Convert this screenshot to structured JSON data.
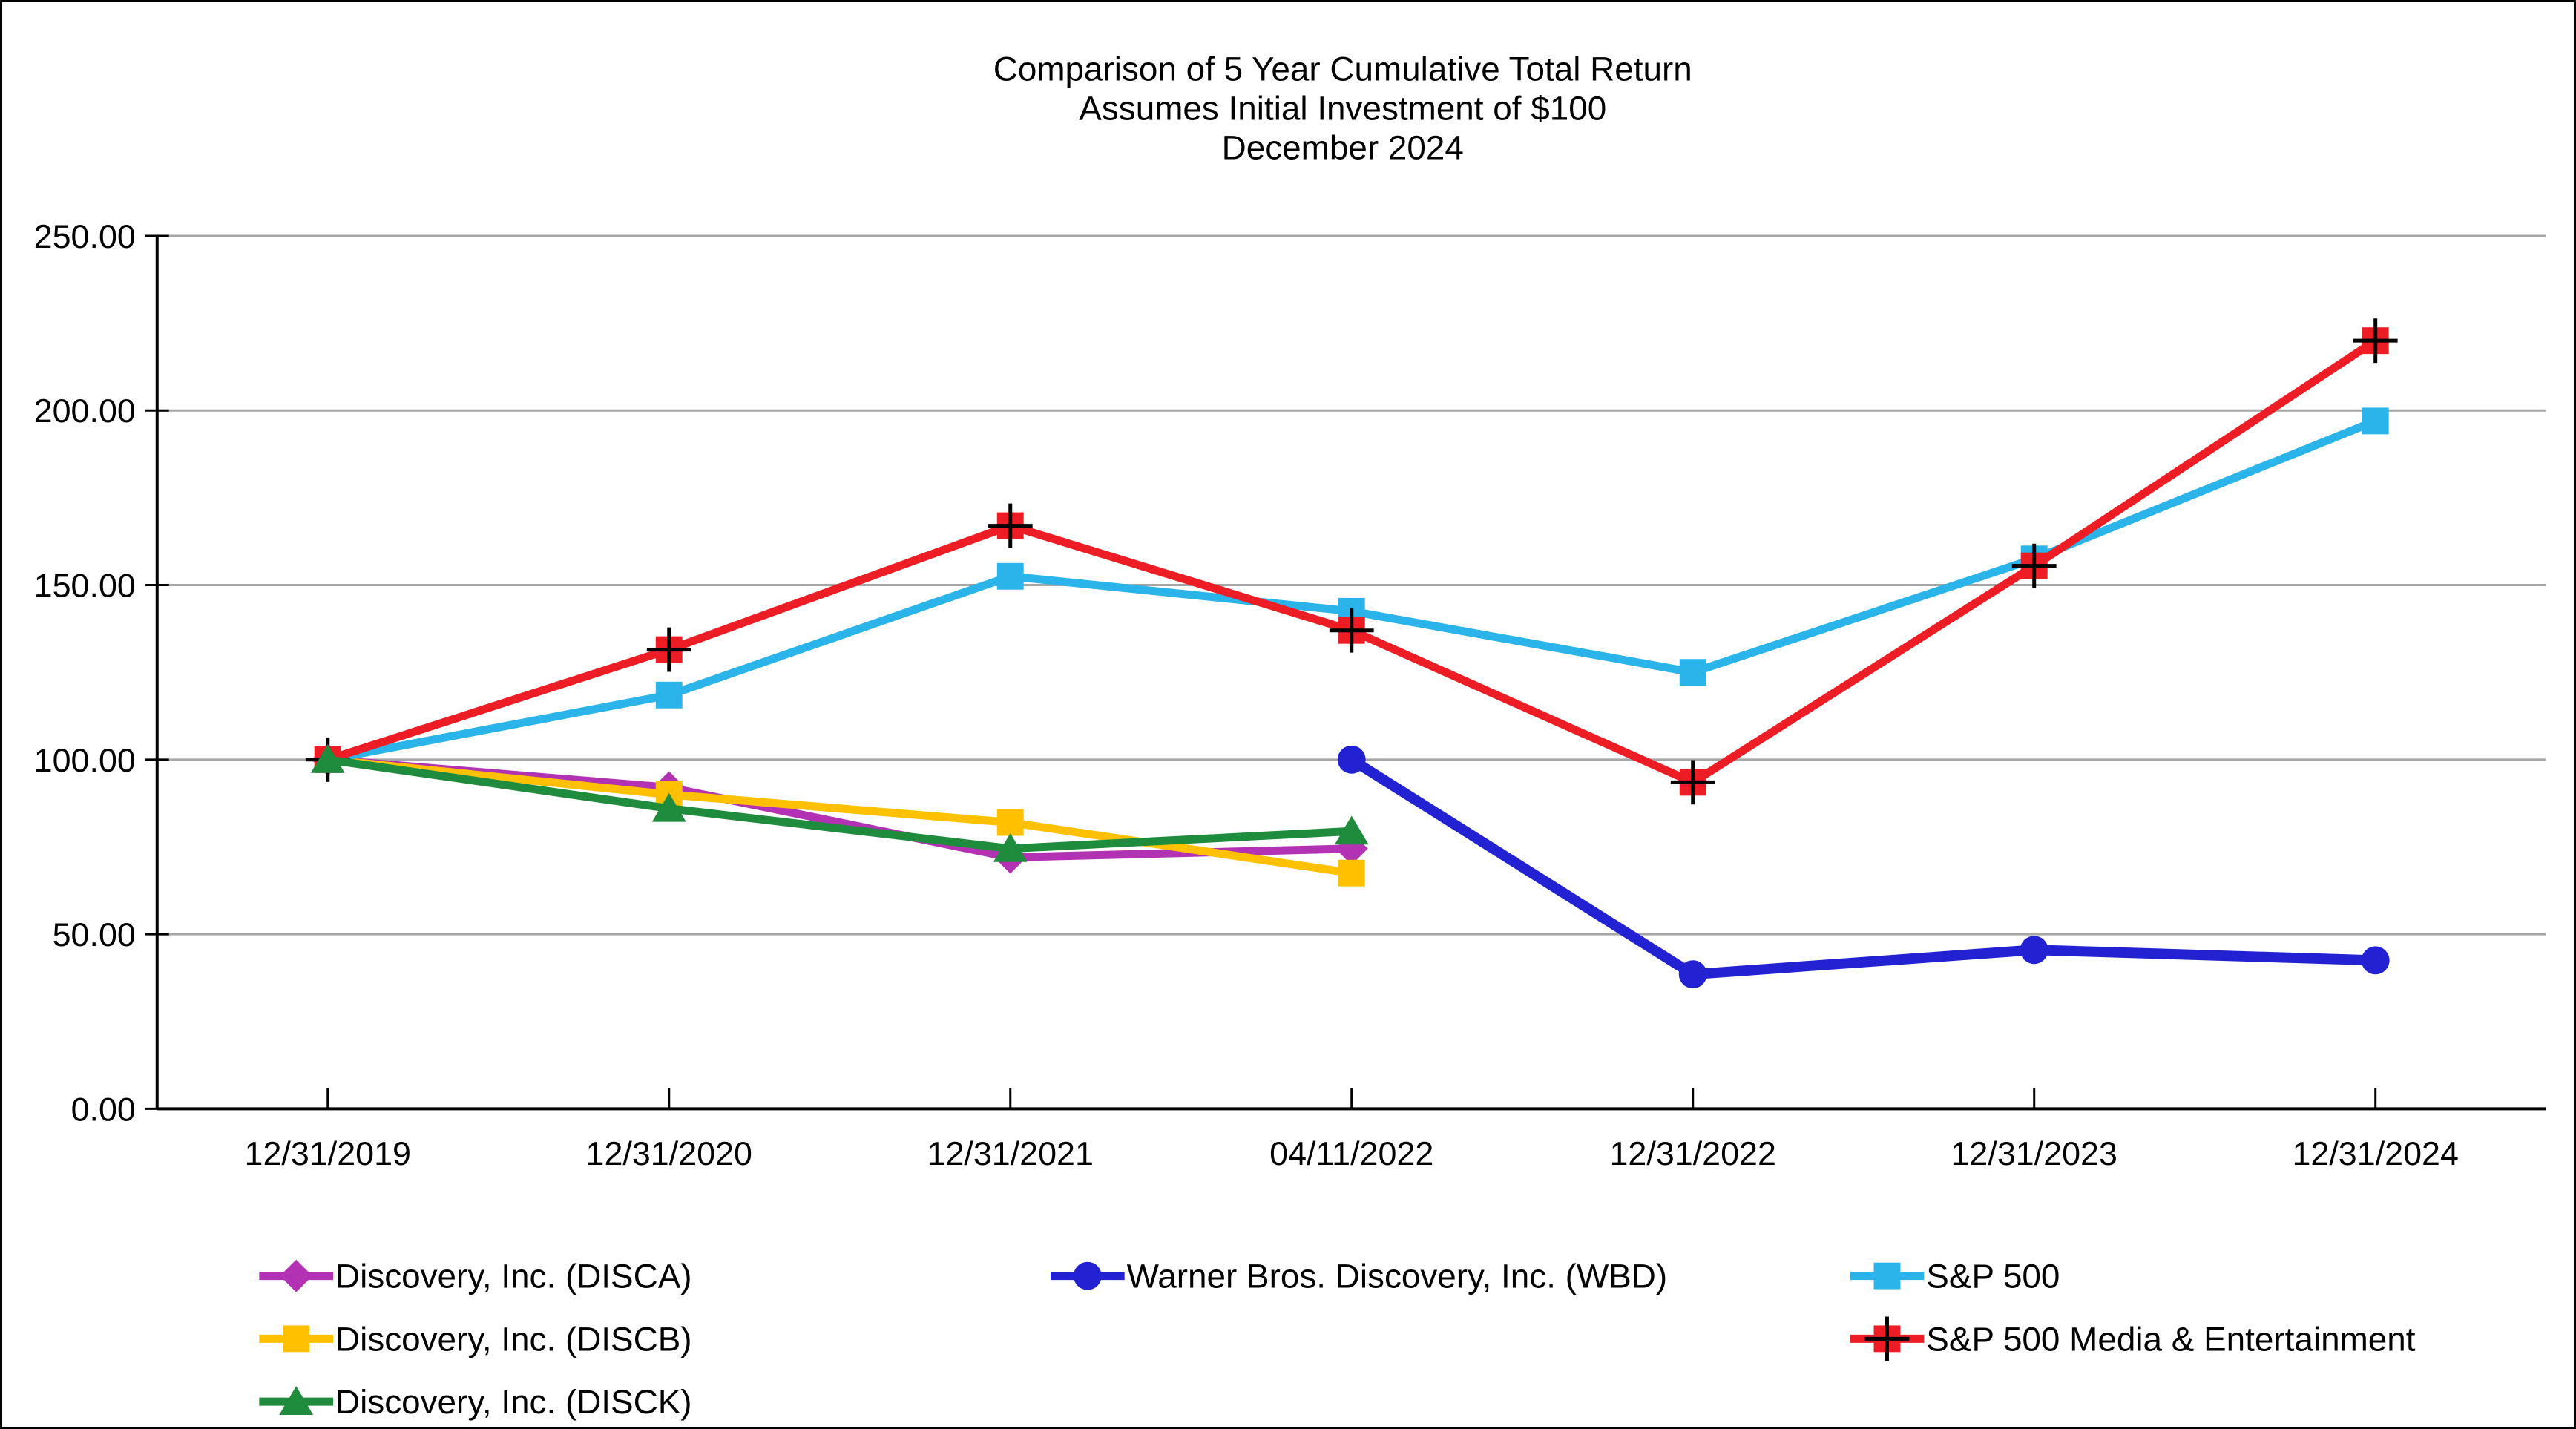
{
  "chart_data": {
    "type": "line",
    "title_lines": [
      "Comparison of 5 Year Cumulative Total Return",
      "Assumes Initial Investment of $100",
      "December 2024"
    ],
    "categories": [
      "12/31/2019",
      "12/31/2020",
      "12/31/2021",
      "04/11/2022",
      "12/31/2022",
      "12/31/2023",
      "12/31/2024"
    ],
    "y_axis": {
      "min": 0,
      "max": 250,
      "step": 50,
      "tick_labels": [
        "0.00",
        "50.00",
        "100.00",
        "150.00",
        "200.00",
        "250.00"
      ]
    },
    "grid": true,
    "gridline_color": "#A6A6A6",
    "axis_color": "#000000",
    "legend_position": "bottom",
    "series": [
      {
        "name": "Discovery, Inc. (DISCA)",
        "marker": "diamond",
        "color": "#B331B3",
        "values": [
          100.0,
          92.0,
          72.0,
          74.5,
          null,
          null,
          null
        ]
      },
      {
        "name": "Discovery, Inc. (DISCB)",
        "marker": "square",
        "color": "#FFC000",
        "values": [
          100.0,
          90.0,
          82.0,
          67.5,
          null,
          null,
          null
        ]
      },
      {
        "name": "Discovery, Inc. (DISCK)",
        "marker": "triangle",
        "color": "#1E8B3D",
        "values": [
          100.0,
          86.0,
          74.5,
          79.5,
          null,
          null,
          null
        ]
      },
      {
        "name": "Warner Bros. Discovery, Inc. (WBD)",
        "marker": "circle",
        "color": "#2222D2",
        "values": [
          null,
          null,
          null,
          100.0,
          38.5,
          45.5,
          42.5
        ]
      },
      {
        "name": "S&P 500",
        "marker": "square",
        "color": "#2AB4E9",
        "values": [
          100.0,
          118.5,
          152.5,
          142.5,
          125.0,
          157.5,
          197.0
        ]
      },
      {
        "name": "S&P 500 Media & Entertainment",
        "marker": "square-plus",
        "color": "#EC1D24",
        "values": [
          100.0,
          131.5,
          167.0,
          137.0,
          93.5,
          155.5,
          220.0
        ]
      }
    ],
    "legend_columns": [
      [
        0,
        1,
        2
      ],
      [
        3
      ],
      [
        4,
        5
      ]
    ]
  }
}
